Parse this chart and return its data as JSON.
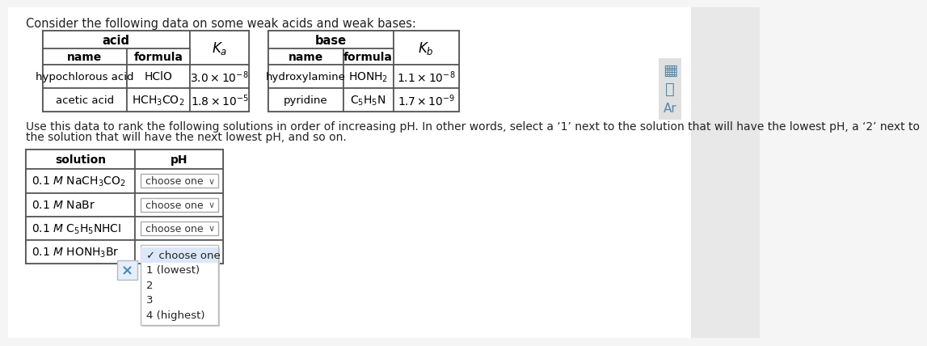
{
  "title": "Consider the following data on some weak acids and weak bases:",
  "bg_color": "#f5f5f5",
  "table_bg": "#ffffff",
  "acid_header": "acid",
  "base_header": "base",
  "Ka_label": "$K_a$",
  "Kb_label": "$K_b$",
  "col_name": "name",
  "col_formula": "formula",
  "acid_rows": [
    {
      "name": "hypochlorous acid",
      "formula": "HClO",
      "K": "$3.0 \\times 10^{-8}$"
    },
    {
      "name": "acetic acid",
      "formula": "HCH$_3$CO$_2$",
      "K": "$1.8 \\times 10^{-5}$"
    }
  ],
  "base_rows": [
    {
      "name": "hydroxylamine",
      "formula": "HONH$_2$",
      "K": "$1.1 \\times 10^{-8}$"
    },
    {
      "name": "pyridine",
      "formula": "C$_5$H$_5$N",
      "K": "$1.7 \\times 10^{-9}$"
    }
  ],
  "instruction_line1": "Use this data to rank the following solutions in order of increasing pH. In other words, select a ‘1’ next to the solution that will have the lowest pH, a ‘2’ next to",
  "instruction_line2": "the solution that will have the next lowest pH, and so on.",
  "sol_header_solution": "solution",
  "sol_header_pH": "pH",
  "solutions": [
    "0.1 $M$ NaCH$_3$CO$_2$",
    "0.1 $M$ NaBr",
    "0.1 $M$ C$_5$H$_5$NHCI",
    "0.1 $M$ HONH$_3$Br"
  ],
  "dropdown_text": "choose one",
  "dropdown_open_text": "✓ choose one",
  "dropdown_options": [
    "1 (lowest)",
    "2",
    "3",
    "4 (highest)"
  ],
  "x_symbol": "×"
}
